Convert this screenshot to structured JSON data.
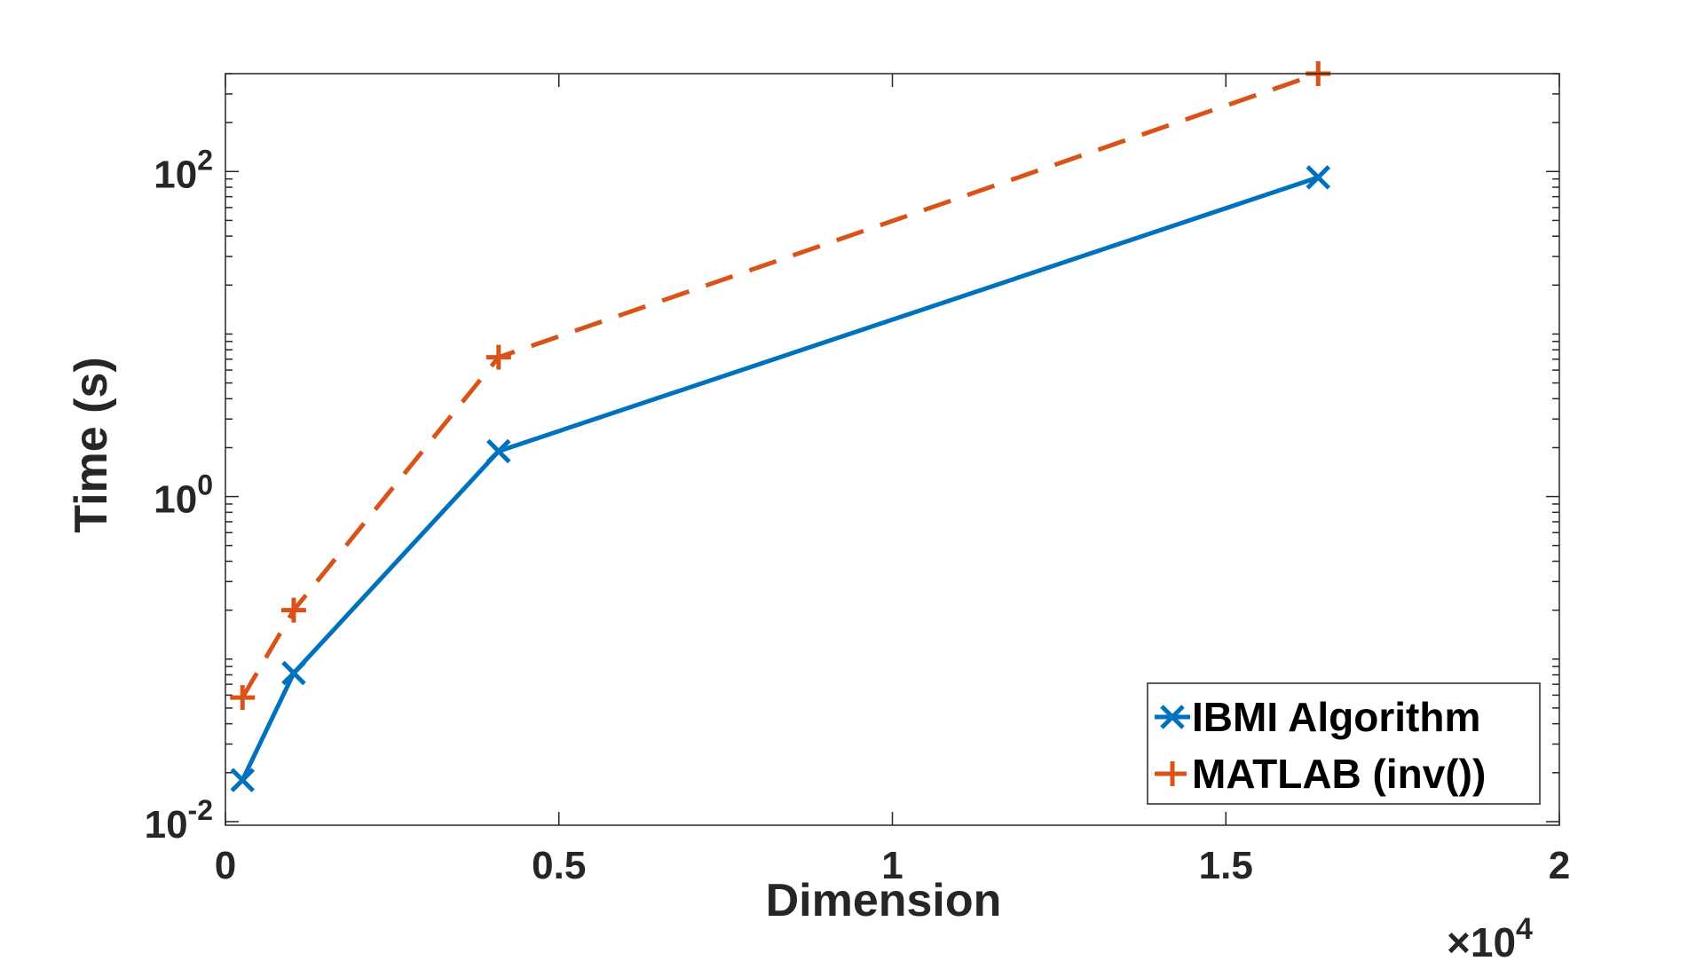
{
  "chart_data": {
    "type": "line",
    "title": "",
    "xlabel": "Dimension",
    "ylabel": "Time (s)",
    "x_scale_exponent_label": "×10",
    "x_scale_exponent": "4",
    "xlim": [
      0,
      20000
    ],
    "ylim": [
      0.0095,
      400
    ],
    "y_scale": "log",
    "x_ticks": [
      0,
      5000,
      10000,
      15000,
      20000
    ],
    "x_tick_labels": [
      "0",
      "0.5",
      "1",
      "1.5",
      "2"
    ],
    "y_ticks": [
      0.01,
      1,
      100
    ],
    "y_tick_labels": [
      {
        "base": "10",
        "exp": "-2"
      },
      {
        "base": "10",
        "exp": "0"
      },
      {
        "base": "10",
        "exp": "2"
      }
    ],
    "grid": false,
    "legend_position": "bottom-right",
    "series": [
      {
        "name": "IBMI Algorithm",
        "color": "#0072BD",
        "line_style": "solid",
        "marker": "x",
        "x": [
          256,
          1024,
          4096,
          16384
        ],
        "y": [
          0.018,
          0.082,
          1.9,
          92
        ]
      },
      {
        "name": "MATLAB (inv())",
        "color": "#D95319",
        "line_style": "dashed",
        "marker": "+",
        "x": [
          256,
          1024,
          4096,
          16384
        ],
        "y": [
          0.058,
          0.2,
          7.2,
          400
        ]
      }
    ]
  }
}
